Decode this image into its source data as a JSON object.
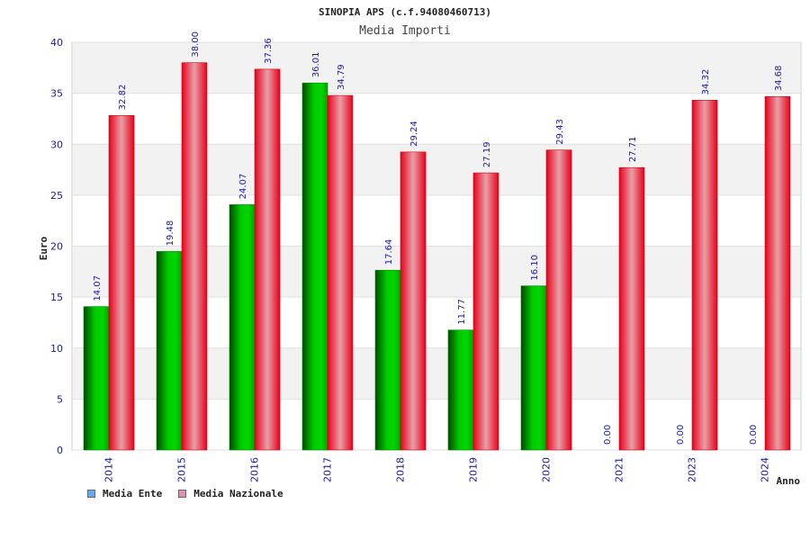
{
  "legend": {
    "items": [
      {
        "label": "Media Ente",
        "color": "#6aa6ee"
      },
      {
        "label": "Media Nazionale",
        "color": "#e58cb8"
      }
    ]
  },
  "chart_data": {
    "type": "bar",
    "title": "SINOPIA APS (c.f.94080460713)",
    "subtitle": "Media Importi",
    "xlabel": "Anno",
    "ylabel": "Euro",
    "ylim": [
      0,
      40
    ],
    "yticks": [
      0,
      5,
      10,
      15,
      20,
      25,
      30,
      35,
      40
    ],
    "grid": true,
    "legend_position": "bottom-left",
    "categories": [
      "2014",
      "2015",
      "2016",
      "2017",
      "2018",
      "2019",
      "2020",
      "2021",
      "2023",
      "2024"
    ],
    "series": [
      {
        "name": "Media Ente",
        "color": "#00b000",
        "values": [
          14.07,
          19.48,
          24.07,
          36.01,
          17.64,
          11.77,
          16.1,
          0.0,
          0.0,
          0.0
        ],
        "labels": [
          "14.07",
          "19.48",
          "24.07",
          "36.01",
          "17.64",
          "11.77",
          "16.10",
          "0.00",
          "0.00",
          "0.00"
        ]
      },
      {
        "name": "Media Nazionale",
        "color": "#ee1122",
        "values": [
          32.82,
          38.0,
          37.36,
          34.79,
          29.24,
          27.19,
          29.43,
          27.71,
          34.32,
          34.68
        ],
        "labels": [
          "32.82",
          "38.00",
          "37.36",
          "34.79",
          "29.24",
          "27.19",
          "29.43",
          "27.71",
          "34.32",
          "34.68"
        ]
      }
    ]
  }
}
